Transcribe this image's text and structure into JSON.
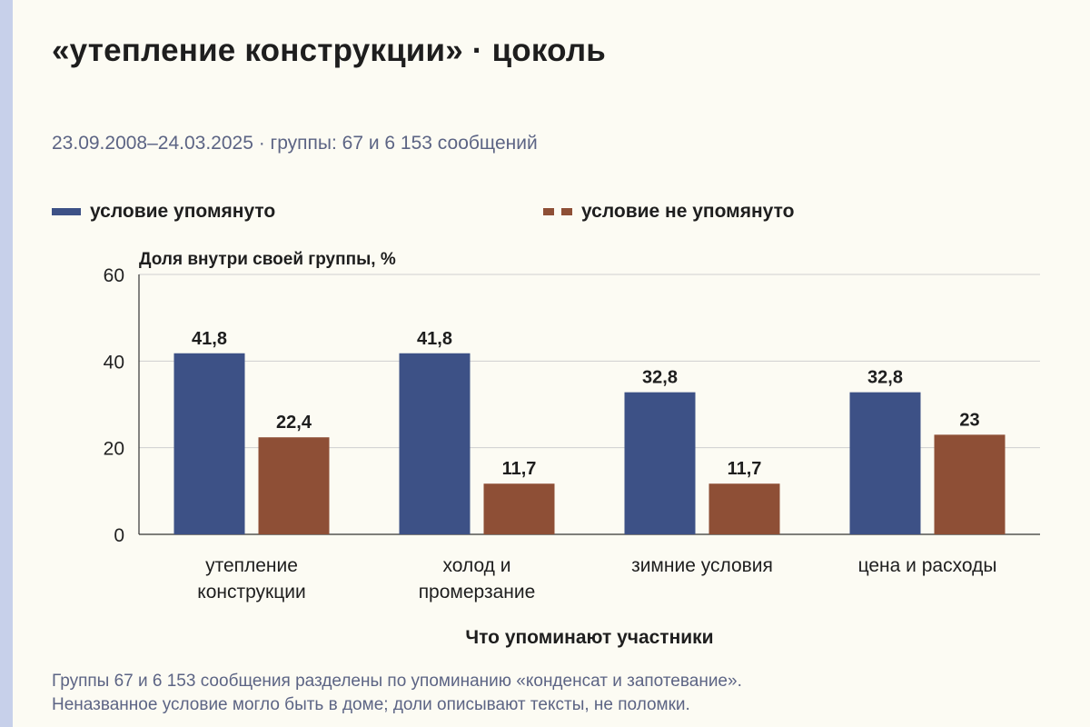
{
  "title": "«утепление конструкции» · цоколь",
  "subtitle": "23.09.2008–24.03.2025 · группы: 67 и 6 153 сообщений",
  "footnote": [
    "Группы 67 и 6 153 сообщения разделены по упоминанию «конденсат и запотевание».",
    "Неназванное условие могло быть в доме; доли описывают тексты, не поломки."
  ],
  "colors": {
    "mentioned": "#3d5186",
    "not_mentioned": "#8e4f36",
    "accent_strip": "#c7d0ea"
  },
  "chart_data": {
    "type": "bar",
    "title": "",
    "xlabel": "Что упоминают участники",
    "ylabel": "Доля внутри своей группы, %",
    "ylim": [
      0,
      60
    ],
    "yticks": [
      0,
      20,
      40,
      60
    ],
    "grid": true,
    "legend_position": "top",
    "categories": [
      [
        "утепление",
        "конструкции"
      ],
      [
        "холод и",
        "промерзание"
      ],
      [
        "зимние условия"
      ],
      [
        "цена и расходы"
      ]
    ],
    "series": [
      {
        "name": "условие упомянуто",
        "color": "#3d5186",
        "values": [
          41.8,
          41.8,
          32.8,
          32.8
        ],
        "labels": [
          "41,8",
          "41,8",
          "32,8",
          "32,8"
        ]
      },
      {
        "name": "условие не упомянуто",
        "color": "#8e4f36",
        "values": [
          22.4,
          11.7,
          11.7,
          23
        ],
        "labels": [
          "22,4",
          "11,7",
          "11,7",
          "23"
        ]
      }
    ]
  }
}
